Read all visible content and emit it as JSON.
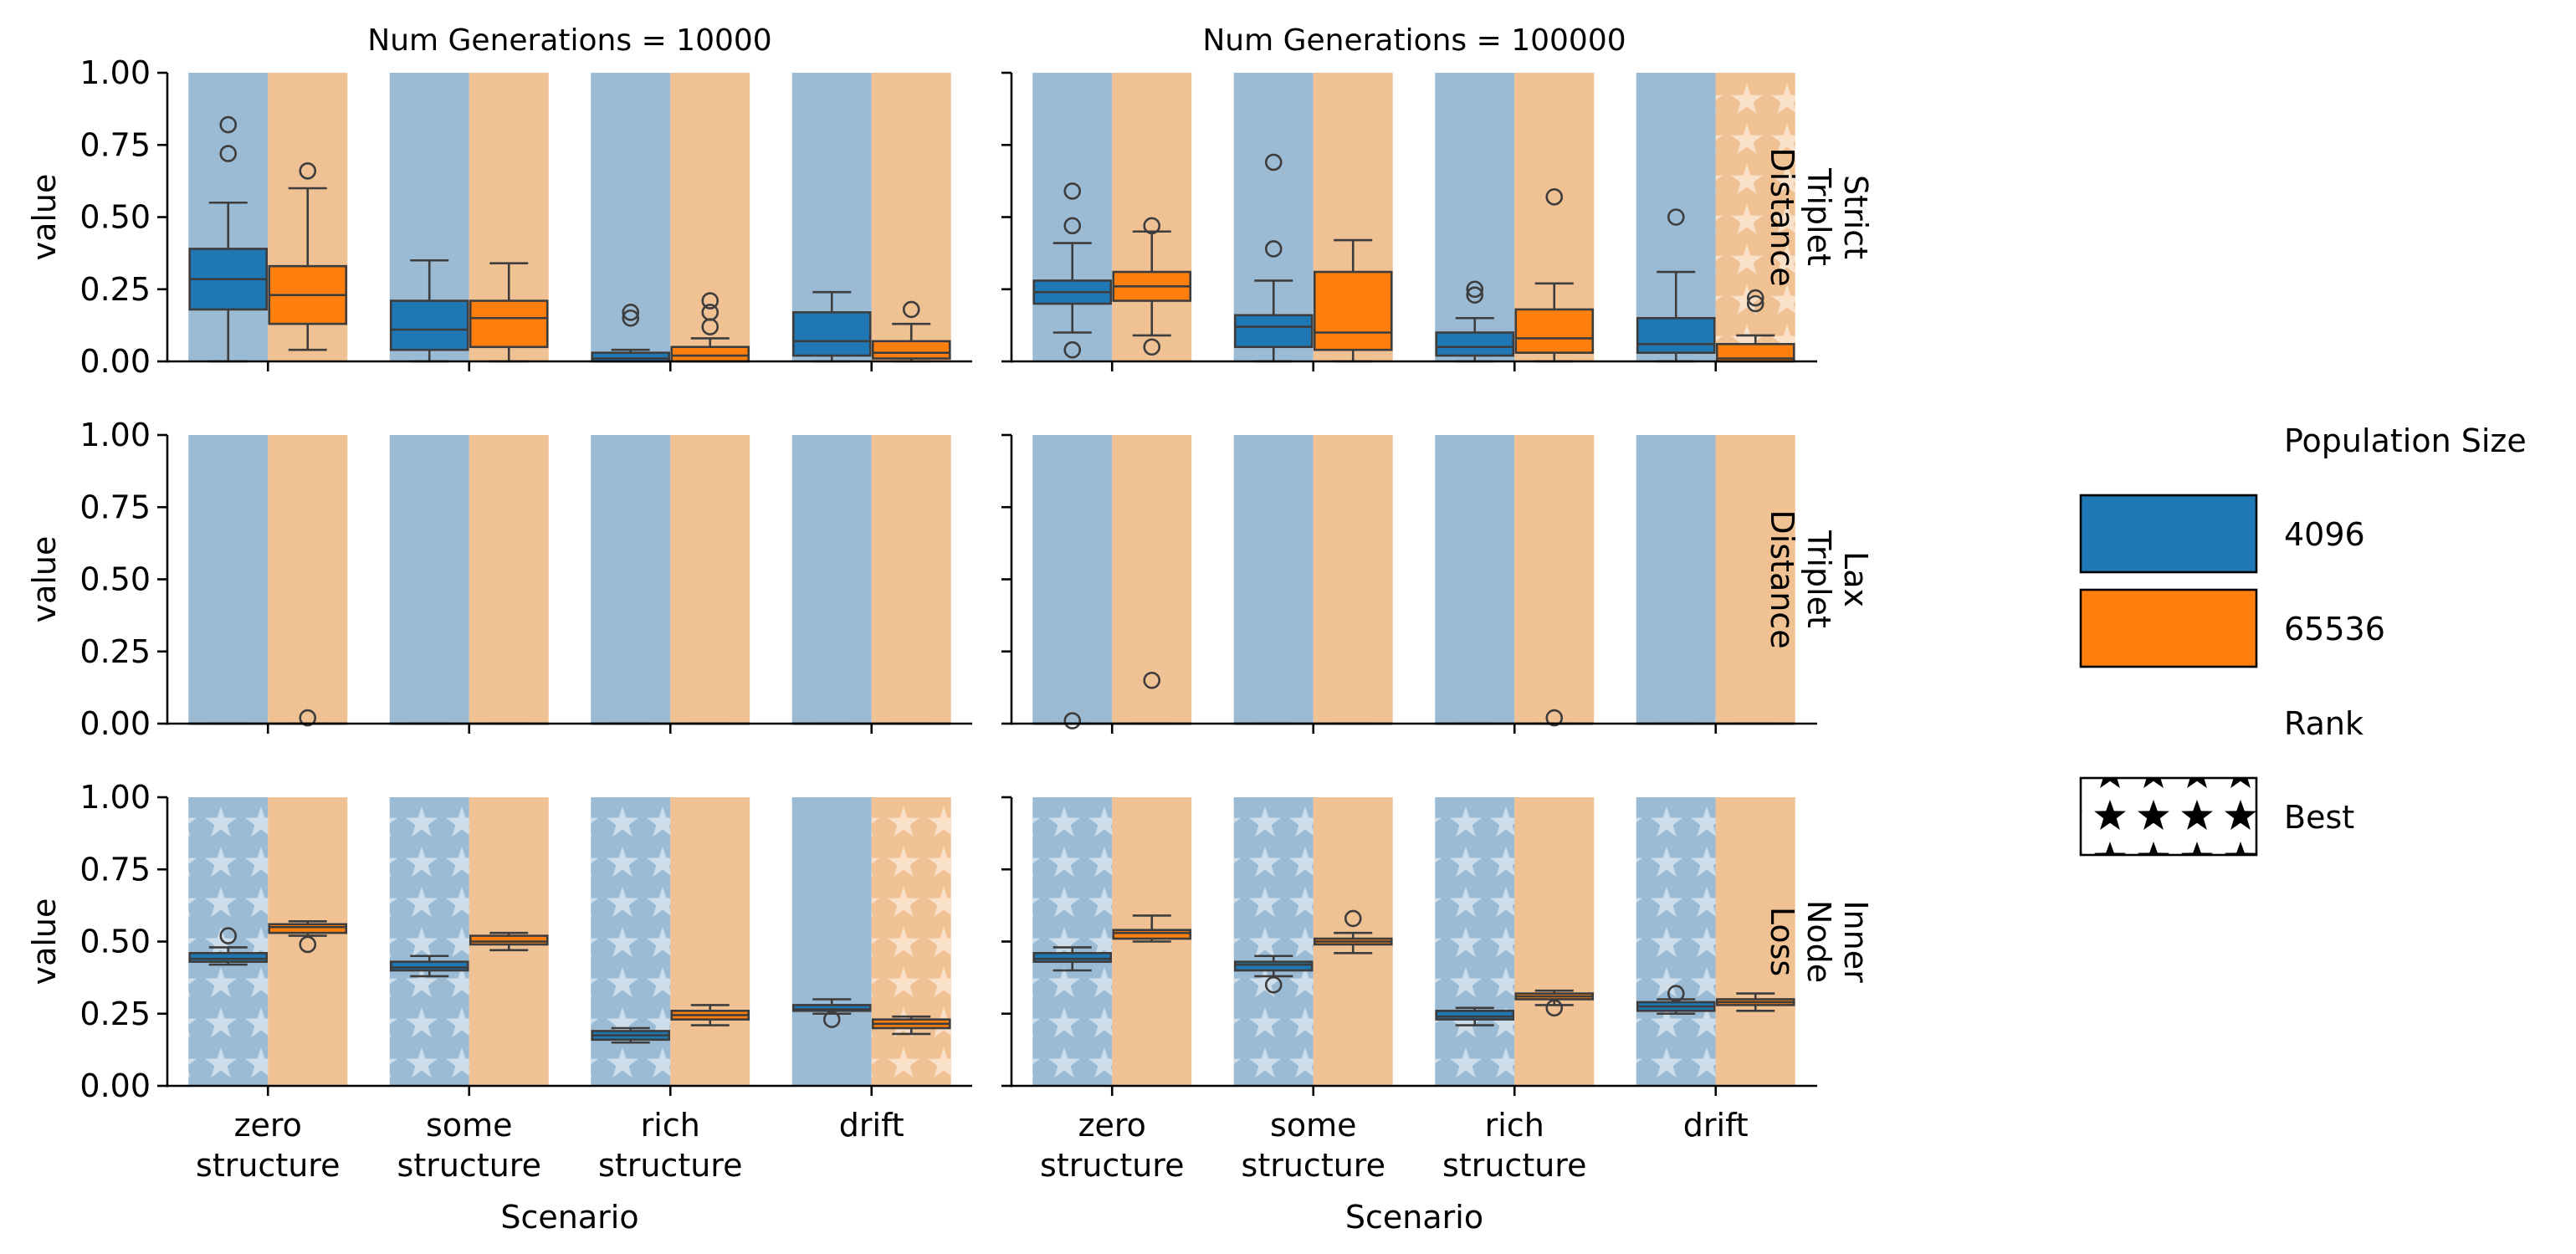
{
  "chart_data": {
    "type": "box",
    "columns": [
      {
        "title": "Num Generations = 10000"
      },
      {
        "title": "Num Generations = 100000"
      }
    ],
    "rows": [
      {
        "title": "Strict\nTriplet\nDistance",
        "ylabel": "value"
      },
      {
        "title": "Lax\nTriplet\nDistance",
        "ylabel": "value"
      },
      {
        "title": "Inner\nNode\nLoss",
        "ylabel": "value"
      }
    ],
    "xlabel": "Scenario",
    "categories": [
      "zero\nstructure",
      "some\nstructure",
      "rich\nstructure",
      "drift"
    ],
    "yticks": [
      "0.00",
      "0.25",
      "0.50",
      "0.75",
      "1.00"
    ],
    "ylim": [
      0,
      1
    ],
    "grid": false,
    "series": [
      {
        "name": "4096",
        "color": "#1f77b4",
        "bgcolor": "#9bbad3"
      },
      {
        "name": "65536",
        "color": "#ff7f0e",
        "bgcolor": "#f0c193"
      }
    ],
    "legend": {
      "position": "right",
      "hue_title": "Population Size",
      "rank_title": "Rank",
      "rank_entry": "Best"
    },
    "panels": [
      {
        "row": 0,
        "col": 0,
        "boxes": [
          [
            {
              "q1": 0.18,
              "med": 0.285,
              "q3": 0.39,
              "wlo": 0.0,
              "whi": 0.55,
              "fliers": [
                0.72,
                0.82
              ],
              "best": false
            },
            {
              "q1": 0.13,
              "med": 0.23,
              "q3": 0.33,
              "wlo": 0.04,
              "whi": 0.6,
              "fliers": [
                0.66
              ],
              "best": false
            }
          ],
          [
            {
              "q1": 0.04,
              "med": 0.11,
              "q3": 0.21,
              "wlo": 0.0,
              "whi": 0.35,
              "fliers": [],
              "best": false
            },
            {
              "q1": 0.05,
              "med": 0.15,
              "q3": 0.21,
              "wlo": 0.0,
              "whi": 0.34,
              "fliers": [],
              "best": false
            }
          ],
          [
            {
              "q1": 0.0,
              "med": 0.01,
              "q3": 0.03,
              "wlo": 0.0,
              "whi": 0.04,
              "fliers": [
                0.15,
                0.17
              ],
              "best": false
            },
            {
              "q1": 0.0,
              "med": 0.02,
              "q3": 0.05,
              "wlo": 0.0,
              "whi": 0.08,
              "fliers": [
                0.12,
                0.17,
                0.21
              ],
              "best": false
            }
          ],
          [
            {
              "q1": 0.02,
              "med": 0.07,
              "q3": 0.17,
              "wlo": 0.0,
              "whi": 0.24,
              "fliers": [],
              "best": false
            },
            {
              "q1": 0.01,
              "med": 0.03,
              "q3": 0.07,
              "wlo": 0.0,
              "whi": 0.13,
              "fliers": [
                0.18
              ],
              "best": false
            }
          ]
        ]
      },
      {
        "row": 0,
        "col": 1,
        "boxes": [
          [
            {
              "q1": 0.2,
              "med": 0.24,
              "q3": 0.28,
              "wlo": 0.1,
              "whi": 0.41,
              "fliers": [
                0.04,
                0.47,
                0.59
              ],
              "best": false
            },
            {
              "q1": 0.21,
              "med": 0.26,
              "q3": 0.31,
              "wlo": 0.09,
              "whi": 0.45,
              "fliers": [
                0.05,
                0.47
              ],
              "best": false
            }
          ],
          [
            {
              "q1": 0.05,
              "med": 0.12,
              "q3": 0.16,
              "wlo": 0.0,
              "whi": 0.28,
              "fliers": [
                0.39,
                0.69
              ],
              "best": false
            },
            {
              "q1": 0.04,
              "med": 0.1,
              "q3": 0.31,
              "wlo": 0.0,
              "whi": 0.42,
              "fliers": [],
              "best": false
            }
          ],
          [
            {
              "q1": 0.02,
              "med": 0.05,
              "q3": 0.1,
              "wlo": 0.0,
              "whi": 0.15,
              "fliers": [
                0.23,
                0.25
              ],
              "best": false
            },
            {
              "q1": 0.03,
              "med": 0.08,
              "q3": 0.18,
              "wlo": 0.0,
              "whi": 0.27,
              "fliers": [
                0.57
              ],
              "best": false
            }
          ],
          [
            {
              "q1": 0.03,
              "med": 0.06,
              "q3": 0.15,
              "wlo": 0.0,
              "whi": 0.31,
              "fliers": [
                0.5
              ],
              "best": false
            },
            {
              "q1": 0.0,
              "med": 0.01,
              "q3": 0.06,
              "wlo": 0.0,
              "whi": 0.09,
              "fliers": [
                0.2,
                0.22
              ],
              "best": true
            }
          ]
        ]
      },
      {
        "row": 1,
        "col": 0,
        "boxes": [
          [
            {
              "q1": 0.0,
              "med": 0.0,
              "q3": 0.0,
              "wlo": 0.0,
              "whi": 0.0,
              "fliers": [],
              "best": false
            },
            {
              "q1": 0.0,
              "med": 0.0,
              "q3": 0.0,
              "wlo": 0.0,
              "whi": 0.0,
              "fliers": [
                0.02
              ],
              "best": false
            }
          ],
          [
            {
              "q1": 0.0,
              "med": 0.0,
              "q3": 0.0,
              "wlo": 0.0,
              "whi": 0.0,
              "fliers": [],
              "best": false
            },
            {
              "q1": 0.0,
              "med": 0.0,
              "q3": 0.0,
              "wlo": 0.0,
              "whi": 0.0,
              "fliers": [],
              "best": false
            }
          ],
          [
            {
              "q1": 0.0,
              "med": 0.0,
              "q3": 0.0,
              "wlo": 0.0,
              "whi": 0.0,
              "fliers": [],
              "best": false
            },
            {
              "q1": 0.0,
              "med": 0.0,
              "q3": 0.0,
              "wlo": 0.0,
              "whi": 0.0,
              "fliers": [],
              "best": false
            }
          ],
          [
            {
              "q1": 0.0,
              "med": 0.0,
              "q3": 0.0,
              "wlo": 0.0,
              "whi": 0.0,
              "fliers": [],
              "best": false
            },
            {
              "q1": 0.0,
              "med": 0.0,
              "q3": 0.0,
              "wlo": 0.0,
              "whi": 0.0,
              "fliers": [],
              "best": false
            }
          ]
        ]
      },
      {
        "row": 1,
        "col": 1,
        "boxes": [
          [
            {
              "q1": 0.0,
              "med": 0.0,
              "q3": 0.0,
              "wlo": 0.0,
              "whi": 0.0,
              "fliers": [
                0.01
              ],
              "best": false
            },
            {
              "q1": 0.0,
              "med": 0.0,
              "q3": 0.0,
              "wlo": 0.0,
              "whi": 0.0,
              "fliers": [
                0.15
              ],
              "best": false
            }
          ],
          [
            {
              "q1": 0.0,
              "med": 0.0,
              "q3": 0.0,
              "wlo": 0.0,
              "whi": 0.0,
              "fliers": [],
              "best": false
            },
            {
              "q1": 0.0,
              "med": 0.0,
              "q3": 0.0,
              "wlo": 0.0,
              "whi": 0.0,
              "fliers": [],
              "best": false
            }
          ],
          [
            {
              "q1": 0.0,
              "med": 0.0,
              "q3": 0.0,
              "wlo": 0.0,
              "whi": 0.0,
              "fliers": [],
              "best": false
            },
            {
              "q1": 0.0,
              "med": 0.0,
              "q3": 0.0,
              "wlo": 0.0,
              "whi": 0.0,
              "fliers": [
                0.02
              ],
              "best": false
            }
          ],
          [
            {
              "q1": 0.0,
              "med": 0.0,
              "q3": 0.0,
              "wlo": 0.0,
              "whi": 0.0,
              "fliers": [],
              "best": false
            },
            {
              "q1": 0.0,
              "med": 0.0,
              "q3": 0.0,
              "wlo": 0.0,
              "whi": 0.0,
              "fliers": [],
              "best": false
            }
          ]
        ]
      },
      {
        "row": 2,
        "col": 0,
        "boxes": [
          [
            {
              "q1": 0.43,
              "med": 0.44,
              "q3": 0.46,
              "wlo": 0.42,
              "whi": 0.48,
              "fliers": [
                0.52
              ],
              "best": true
            },
            {
              "q1": 0.53,
              "med": 0.55,
              "q3": 0.56,
              "wlo": 0.52,
              "whi": 0.57,
              "fliers": [
                0.49
              ],
              "best": false
            }
          ],
          [
            {
              "q1": 0.4,
              "med": 0.41,
              "q3": 0.43,
              "wlo": 0.38,
              "whi": 0.45,
              "fliers": [],
              "best": true
            },
            {
              "q1": 0.49,
              "med": 0.5,
              "q3": 0.52,
              "wlo": 0.47,
              "whi": 0.53,
              "fliers": [],
              "best": false
            }
          ],
          [
            {
              "q1": 0.16,
              "med": 0.175,
              "q3": 0.19,
              "wlo": 0.15,
              "whi": 0.2,
              "fliers": [],
              "best": true
            },
            {
              "q1": 0.23,
              "med": 0.245,
              "q3": 0.26,
              "wlo": 0.21,
              "whi": 0.28,
              "fliers": [],
              "best": false
            }
          ],
          [
            {
              "q1": 0.26,
              "med": 0.265,
              "q3": 0.28,
              "wlo": 0.25,
              "whi": 0.3,
              "fliers": [
                0.23
              ],
              "best": false
            },
            {
              "q1": 0.2,
              "med": 0.215,
              "q3": 0.23,
              "wlo": 0.18,
              "whi": 0.24,
              "fliers": [],
              "best": true
            }
          ]
        ]
      },
      {
        "row": 2,
        "col": 1,
        "boxes": [
          [
            {
              "q1": 0.43,
              "med": 0.44,
              "q3": 0.46,
              "wlo": 0.4,
              "whi": 0.48,
              "fliers": [],
              "best": true
            },
            {
              "q1": 0.51,
              "med": 0.53,
              "q3": 0.54,
              "wlo": 0.5,
              "whi": 0.59,
              "fliers": [],
              "best": false
            }
          ],
          [
            {
              "q1": 0.4,
              "med": 0.42,
              "q3": 0.43,
              "wlo": 0.38,
              "whi": 0.45,
              "fliers": [
                0.35
              ],
              "best": true
            },
            {
              "q1": 0.49,
              "med": 0.5,
              "q3": 0.51,
              "wlo": 0.46,
              "whi": 0.53,
              "fliers": [
                0.58
              ],
              "best": false
            }
          ],
          [
            {
              "q1": 0.23,
              "med": 0.24,
              "q3": 0.26,
              "wlo": 0.21,
              "whi": 0.27,
              "fliers": [],
              "best": true
            },
            {
              "q1": 0.3,
              "med": 0.31,
              "q3": 0.32,
              "wlo": 0.28,
              "whi": 0.33,
              "fliers": [
                0.27
              ],
              "best": false
            }
          ],
          [
            {
              "q1": 0.26,
              "med": 0.275,
              "q3": 0.29,
              "wlo": 0.25,
              "whi": 0.3,
              "fliers": [
                0.32
              ],
              "best": true
            },
            {
              "q1": 0.28,
              "med": 0.29,
              "q3": 0.3,
              "wlo": 0.26,
              "whi": 0.32,
              "fliers": [],
              "best": false
            }
          ]
        ]
      }
    ]
  }
}
